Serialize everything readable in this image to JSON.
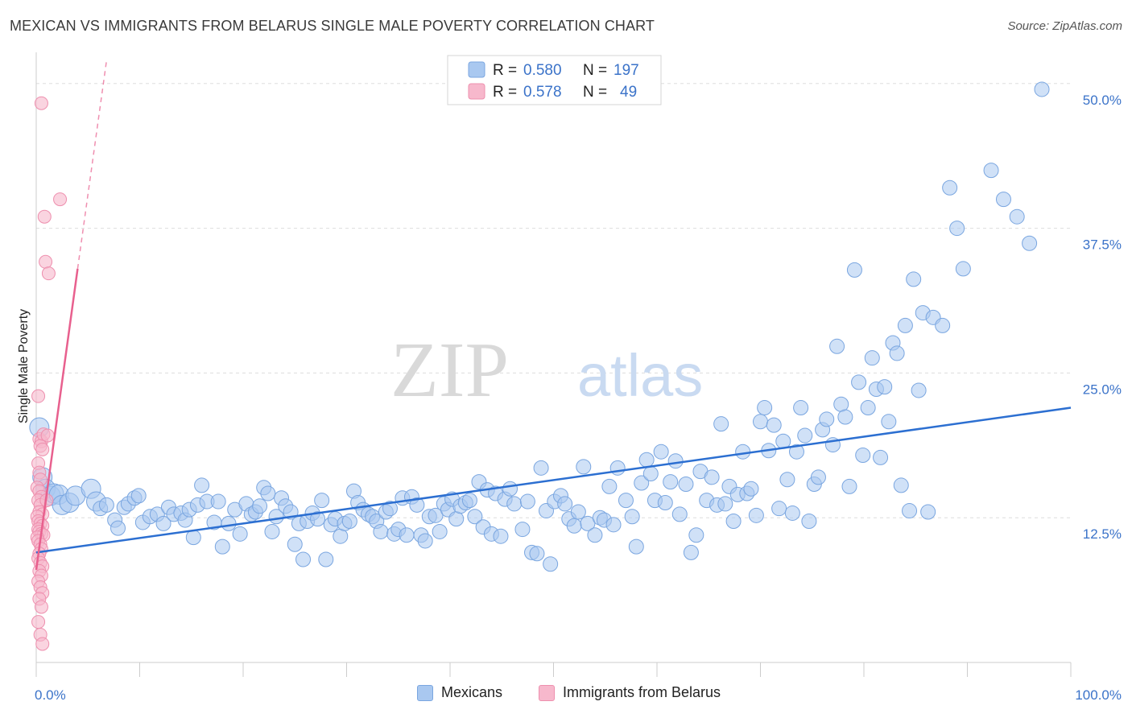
{
  "header": {
    "title": "MEXICAN VS IMMIGRANTS FROM BELARUS SINGLE MALE POVERTY CORRELATION CHART",
    "source": "Source: ZipAtlas.com"
  },
  "watermark": {
    "zip": "ZIP",
    "atlas": "atlas"
  },
  "legend": {
    "rows": [
      {
        "r_label": "R =",
        "r_value": "0.580",
        "n_label": "N =",
        "n_value": "197"
      },
      {
        "r_label": "R =",
        "r_value": "0.578",
        "n_label": "N =",
        "n_value": "49"
      }
    ]
  },
  "bottom_legend": {
    "series1": "Mexicans",
    "series2": "Immigrants from Belarus"
  },
  "colors": {
    "mexicans_fill": "#a9c8f0",
    "mexicans_stroke": "#7aa6e0",
    "mexicans_line": "#2c6fd1",
    "belarus_fill": "#f7b8cc",
    "belarus_stroke": "#ee8fae",
    "belarus_line": "#e8608e",
    "tick_text": "#3b73c9",
    "grid": "#dddddd"
  },
  "chart_data": {
    "type": "scatter",
    "title": "MEXICAN VS IMMIGRANTS FROM BELARUS SINGLE MALE POVERTY CORRELATION CHART",
    "xlabel": "",
    "ylabel": "Single Male Poverty",
    "xlim": [
      0,
      100
    ],
    "ylim": [
      0,
      52
    ],
    "x_tick_labels": [
      "0.0%",
      "100.0%"
    ],
    "y_ticks": [
      12.5,
      25.0,
      37.5,
      50.0
    ],
    "y_tick_labels": [
      "12.5%",
      "25.0%",
      "37.5%",
      "50.0%"
    ],
    "grid": true,
    "legend_position": "top-center",
    "series": [
      {
        "name": "Mexicans",
        "r": 0.58,
        "n": 197,
        "trendline": {
          "x": [
            0,
            100
          ],
          "y": [
            9.5,
            22.0
          ]
        },
        "points": [
          [
            0.3,
            20.3
          ],
          [
            0.6,
            16.0
          ],
          [
            0.9,
            15.0
          ],
          [
            1.4,
            14.4
          ],
          [
            1.7,
            14.6
          ],
          [
            2.2,
            14.5
          ],
          [
            2.5,
            13.6
          ],
          [
            3.2,
            13.8
          ],
          [
            3.8,
            14.4
          ],
          [
            5.3,
            15.0
          ],
          [
            5.8,
            13.9
          ],
          [
            6.2,
            13.3
          ],
          [
            6.8,
            13.6
          ],
          [
            7.6,
            12.3
          ],
          [
            7.9,
            11.6
          ],
          [
            8.5,
            13.4
          ],
          [
            8.9,
            13.7
          ],
          [
            9.5,
            14.2
          ],
          [
            9.9,
            14.4
          ],
          [
            10.3,
            12.1
          ],
          [
            11.0,
            12.6
          ],
          [
            11.7,
            12.8
          ],
          [
            12.3,
            12.0
          ],
          [
            12.8,
            13.4
          ],
          [
            13.3,
            12.8
          ],
          [
            14.0,
            12.9
          ],
          [
            14.4,
            12.3
          ],
          [
            14.8,
            13.2
          ],
          [
            15.2,
            10.8
          ],
          [
            15.6,
            13.6
          ],
          [
            16.0,
            15.3
          ],
          [
            16.5,
            13.9
          ],
          [
            17.2,
            12.1
          ],
          [
            17.6,
            13.9
          ],
          [
            18.0,
            10.0
          ],
          [
            18.6,
            12.0
          ],
          [
            19.2,
            13.2
          ],
          [
            19.7,
            11.1
          ],
          [
            20.3,
            13.7
          ],
          [
            20.8,
            12.8
          ],
          [
            21.2,
            13.0
          ],
          [
            21.6,
            13.5
          ],
          [
            22.0,
            15.1
          ],
          [
            22.4,
            14.6
          ],
          [
            22.8,
            11.3
          ],
          [
            23.2,
            12.6
          ],
          [
            23.7,
            14.2
          ],
          [
            24.1,
            13.5
          ],
          [
            24.6,
            13.0
          ],
          [
            25.0,
            10.2
          ],
          [
            25.4,
            12.0
          ],
          [
            25.8,
            8.9
          ],
          [
            26.2,
            12.2
          ],
          [
            26.7,
            12.9
          ],
          [
            27.2,
            12.4
          ],
          [
            27.6,
            14.0
          ],
          [
            28.0,
            8.9
          ],
          [
            28.5,
            11.9
          ],
          [
            28.9,
            12.4
          ],
          [
            29.4,
            10.9
          ],
          [
            29.8,
            12.0
          ],
          [
            30.3,
            12.2
          ],
          [
            30.7,
            14.8
          ],
          [
            31.1,
            13.8
          ],
          [
            31.6,
            13.2
          ],
          [
            32.1,
            12.8
          ],
          [
            32.5,
            12.6
          ],
          [
            32.9,
            12.2
          ],
          [
            33.3,
            11.3
          ],
          [
            33.8,
            13.0
          ],
          [
            34.2,
            13.3
          ],
          [
            34.6,
            11.1
          ],
          [
            35.0,
            11.5
          ],
          [
            35.4,
            14.2
          ],
          [
            35.8,
            11.0
          ],
          [
            36.3,
            14.3
          ],
          [
            36.8,
            13.6
          ],
          [
            37.2,
            11.0
          ],
          [
            37.6,
            10.5
          ],
          [
            38.0,
            12.6
          ],
          [
            38.6,
            12.7
          ],
          [
            39.0,
            11.3
          ],
          [
            39.4,
            13.7
          ],
          [
            39.8,
            13.2
          ],
          [
            40.2,
            14.1
          ],
          [
            40.6,
            12.4
          ],
          [
            41.0,
            13.5
          ],
          [
            41.5,
            13.8
          ],
          [
            41.9,
            14.0
          ],
          [
            42.4,
            12.6
          ],
          [
            42.8,
            15.6
          ],
          [
            43.2,
            11.7
          ],
          [
            43.6,
            14.9
          ],
          [
            44.0,
            11.1
          ],
          [
            44.4,
            14.6
          ],
          [
            44.9,
            10.9
          ],
          [
            45.3,
            14.1
          ],
          [
            45.8,
            15.0
          ],
          [
            46.2,
            13.7
          ],
          [
            47.0,
            11.5
          ],
          [
            47.5,
            13.9
          ],
          [
            47.9,
            9.5
          ],
          [
            48.4,
            9.4
          ],
          [
            48.8,
            16.8
          ],
          [
            49.3,
            13.1
          ],
          [
            49.7,
            8.5
          ],
          [
            50.1,
            13.9
          ],
          [
            50.7,
            14.4
          ],
          [
            51.1,
            13.7
          ],
          [
            51.5,
            12.4
          ],
          [
            52.0,
            11.8
          ],
          [
            52.4,
            13.0
          ],
          [
            52.9,
            16.9
          ],
          [
            53.3,
            12.0
          ],
          [
            54.0,
            11.0
          ],
          [
            54.5,
            12.5
          ],
          [
            54.9,
            12.3
          ],
          [
            55.4,
            15.2
          ],
          [
            55.8,
            11.9
          ],
          [
            56.2,
            16.8
          ],
          [
            57.0,
            14.0
          ],
          [
            57.6,
            12.6
          ],
          [
            58.0,
            10.0
          ],
          [
            58.5,
            15.5
          ],
          [
            59.0,
            17.5
          ],
          [
            59.4,
            16.3
          ],
          [
            59.8,
            14.0
          ],
          [
            60.4,
            18.2
          ],
          [
            60.8,
            13.8
          ],
          [
            61.3,
            15.6
          ],
          [
            61.8,
            17.4
          ],
          [
            62.2,
            12.8
          ],
          [
            62.8,
            15.4
          ],
          [
            63.3,
            9.5
          ],
          [
            63.8,
            11.0
          ],
          [
            64.2,
            16.5
          ],
          [
            64.8,
            14.0
          ],
          [
            65.3,
            16.0
          ],
          [
            65.8,
            13.6
          ],
          [
            66.2,
            20.6
          ],
          [
            66.6,
            13.7
          ],
          [
            67.0,
            15.2
          ],
          [
            67.4,
            12.2
          ],
          [
            67.8,
            14.5
          ],
          [
            68.3,
            18.2
          ],
          [
            68.7,
            14.6
          ],
          [
            69.1,
            15.0
          ],
          [
            69.6,
            12.7
          ],
          [
            70.0,
            20.8
          ],
          [
            70.4,
            22.0
          ],
          [
            70.8,
            18.3
          ],
          [
            71.3,
            20.5
          ],
          [
            71.8,
            13.3
          ],
          [
            72.2,
            19.1
          ],
          [
            72.6,
            15.8
          ],
          [
            73.1,
            12.9
          ],
          [
            73.5,
            18.2
          ],
          [
            73.9,
            22.0
          ],
          [
            74.3,
            19.6
          ],
          [
            74.7,
            12.2
          ],
          [
            75.2,
            15.4
          ],
          [
            75.6,
            16.0
          ],
          [
            76.0,
            20.1
          ],
          [
            76.4,
            21.0
          ],
          [
            77.0,
            18.8
          ],
          [
            77.4,
            27.3
          ],
          [
            77.8,
            22.3
          ],
          [
            78.2,
            21.2
          ],
          [
            78.6,
            15.2
          ],
          [
            79.1,
            33.9
          ],
          [
            79.5,
            24.2
          ],
          [
            79.9,
            17.9
          ],
          [
            80.4,
            22.0
          ],
          [
            80.8,
            26.3
          ],
          [
            81.2,
            23.6
          ],
          [
            81.6,
            17.7
          ],
          [
            82.0,
            23.8
          ],
          [
            82.4,
            20.8
          ],
          [
            82.8,
            27.6
          ],
          [
            83.2,
            26.7
          ],
          [
            83.6,
            15.3
          ],
          [
            84.0,
            29.1
          ],
          [
            84.4,
            13.1
          ],
          [
            84.8,
            33.1
          ],
          [
            85.3,
            23.5
          ],
          [
            85.7,
            30.2
          ],
          [
            86.2,
            13.0
          ],
          [
            86.7,
            29.8
          ],
          [
            87.6,
            29.1
          ],
          [
            88.3,
            41.0
          ],
          [
            89.0,
            37.5
          ],
          [
            89.6,
            34.0
          ],
          [
            92.3,
            42.5
          ],
          [
            93.5,
            40.0
          ],
          [
            94.8,
            38.5
          ],
          [
            96.0,
            36.2
          ],
          [
            97.2,
            49.5
          ]
        ]
      },
      {
        "name": "Immigrants from Belarus",
        "r": 0.578,
        "n": 49,
        "trendline": {
          "x": [
            0,
            4.0
          ],
          "y": [
            8.0,
            34.0
          ]
        },
        "trendline_dashed": {
          "x": [
            4.0,
            6.8
          ],
          "y": [
            34.0,
            52.0
          ]
        },
        "points": [
          [
            0.5,
            48.3
          ],
          [
            0.8,
            38.5
          ],
          [
            0.9,
            34.6
          ],
          [
            1.2,
            33.6
          ],
          [
            2.3,
            40.0
          ],
          [
            0.2,
            23.0
          ],
          [
            0.3,
            19.3
          ],
          [
            0.5,
            19.1
          ],
          [
            0.7,
            19.7
          ],
          [
            1.1,
            19.6
          ],
          [
            0.4,
            18.7
          ],
          [
            0.6,
            18.4
          ],
          [
            0.2,
            17.2
          ],
          [
            0.3,
            16.4
          ],
          [
            0.4,
            15.8
          ],
          [
            0.1,
            15.1
          ],
          [
            0.3,
            14.8
          ],
          [
            0.5,
            14.3
          ],
          [
            0.2,
            14.0
          ],
          [
            0.4,
            13.6
          ],
          [
            0.3,
            13.0
          ],
          [
            0.6,
            12.8
          ],
          [
            0.1,
            12.6
          ],
          [
            0.2,
            12.2
          ],
          [
            0.4,
            12.0
          ],
          [
            0.6,
            11.8
          ],
          [
            0.2,
            11.5
          ],
          [
            0.3,
            11.3
          ],
          [
            0.5,
            11.1
          ],
          [
            0.7,
            11.0
          ],
          [
            0.1,
            10.8
          ],
          [
            0.2,
            10.5
          ],
          [
            0.4,
            10.2
          ],
          [
            0.5,
            9.8
          ],
          [
            0.3,
            9.4
          ],
          [
            0.2,
            9.0
          ],
          [
            0.4,
            8.6
          ],
          [
            0.6,
            8.3
          ],
          [
            0.3,
            7.9
          ],
          [
            0.5,
            7.5
          ],
          [
            0.2,
            7.0
          ],
          [
            0.4,
            6.5
          ],
          [
            0.6,
            6.0
          ],
          [
            0.3,
            5.5
          ],
          [
            0.5,
            4.8
          ],
          [
            0.2,
            3.5
          ],
          [
            0.4,
            2.4
          ],
          [
            0.6,
            1.6
          ],
          [
            1.0,
            14.0
          ]
        ]
      }
    ]
  }
}
